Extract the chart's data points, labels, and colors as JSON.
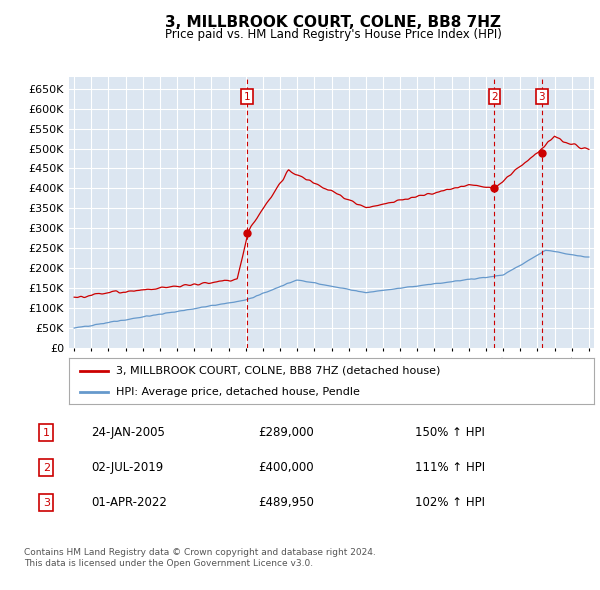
{
  "title": "3, MILLBROOK COURT, COLNE, BB8 7HZ",
  "subtitle": "Price paid vs. HM Land Registry's House Price Index (HPI)",
  "ylim": [
    0,
    680000
  ],
  "yticks": [
    0,
    50000,
    100000,
    150000,
    200000,
    250000,
    300000,
    350000,
    400000,
    450000,
    500000,
    550000,
    600000,
    650000
  ],
  "xlim_left": 1994.7,
  "xlim_right": 2025.3,
  "background_color": "#dce6f1",
  "grid_color": "#ffffff",
  "sale_color": "#cc0000",
  "hpi_color": "#6699cc",
  "sales": [
    {
      "year": 2005.07,
      "price": 289000,
      "num": 1
    },
    {
      "year": 2019.5,
      "price": 400000,
      "num": 2
    },
    {
      "year": 2022.25,
      "price": 489950,
      "num": 3
    }
  ],
  "legend_property": "3, MILLBROOK COURT, COLNE, BB8 7HZ (detached house)",
  "legend_hpi": "HPI: Average price, detached house, Pendle",
  "footer1": "Contains HM Land Registry data © Crown copyright and database right 2024.",
  "footer2": "This data is licensed under the Open Government Licence v3.0.",
  "table_rows": [
    {
      "num": 1,
      "date": "24-JAN-2005",
      "price": "£289,000",
      "pct": "150% ↑ HPI"
    },
    {
      "num": 2,
      "date": "02-JUL-2019",
      "price": "£400,000",
      "pct": "111% ↑ HPI"
    },
    {
      "num": 3,
      "date": "01-APR-2022",
      "price": "£489,950",
      "pct": "102% ↑ HPI"
    }
  ]
}
